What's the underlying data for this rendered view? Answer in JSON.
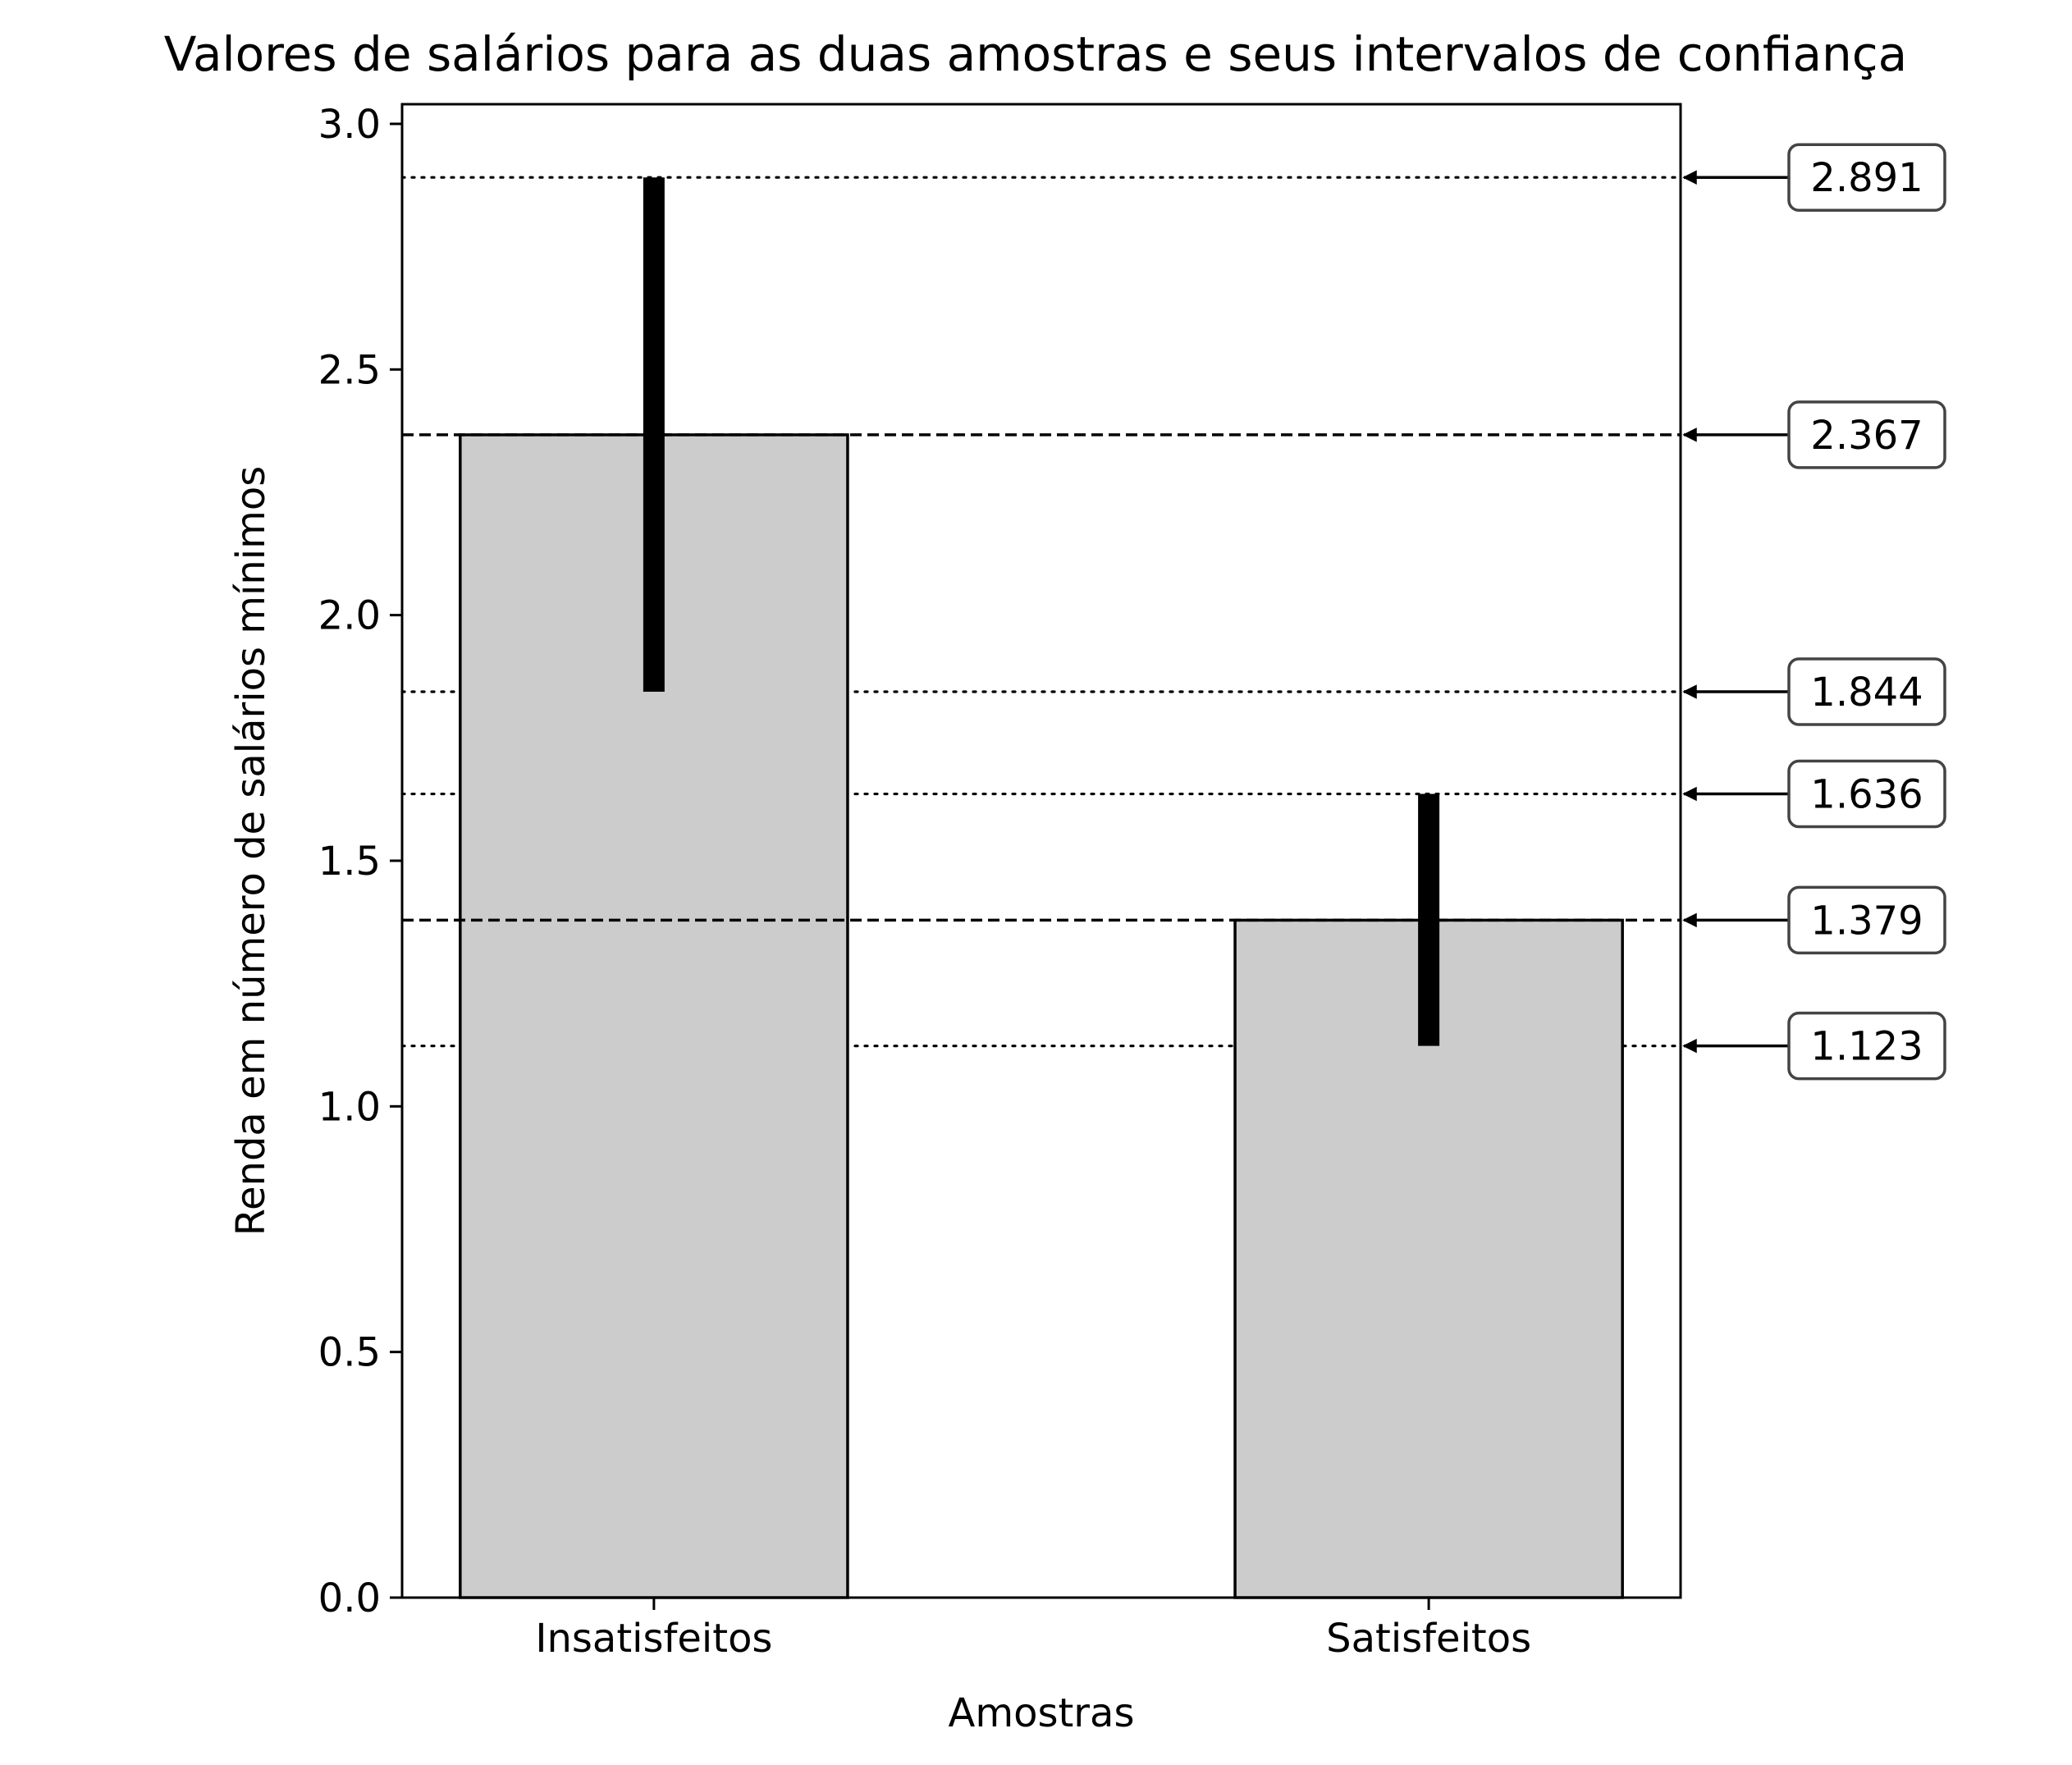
{
  "chart_data": {
    "type": "bar",
    "title": "Valores de salários para as duas amostras e seus intervalos de confiança",
    "xlabel": "Amostras",
    "ylabel": "Renda em número de salários mínimos",
    "categories": [
      "Insatisfeitos",
      "Satisfeitos"
    ],
    "values": [
      2.367,
      1.379
    ],
    "error_intervals": [
      {
        "category": "Insatisfeitos",
        "low": 1.844,
        "high": 2.891
      },
      {
        "category": "Satisfeitos",
        "low": 1.123,
        "high": 1.636
      }
    ],
    "ylim": [
      0,
      3.04
    ],
    "y_ticks": [
      "0.0",
      "0.5",
      "1.0",
      "1.5",
      "2.0",
      "2.5",
      "3.0"
    ],
    "reference_lines": [
      {
        "value": 2.891,
        "label": "2.891",
        "style": "dotted"
      },
      {
        "value": 2.367,
        "label": "2.367",
        "style": "dashed"
      },
      {
        "value": 1.844,
        "label": "1.844",
        "style": "dotted"
      },
      {
        "value": 1.636,
        "label": "1.636",
        "style": "dotted"
      },
      {
        "value": 1.379,
        "label": "1.379",
        "style": "dashed"
      },
      {
        "value": 1.123,
        "label": "1.123",
        "style": "dotted"
      }
    ],
    "grid": false,
    "legend": "none",
    "colors": {
      "bar_fill": "#cccccc",
      "bar_edge": "#000000",
      "error_bar": "#000000",
      "reference_line": "#000000",
      "annotation_box_edge": "#444444"
    }
  }
}
